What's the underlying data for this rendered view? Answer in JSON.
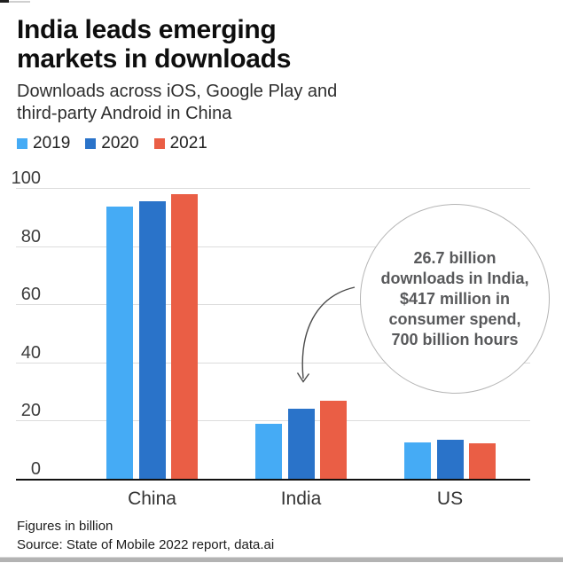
{
  "page": {
    "title": "India leads emerging\nmarkets in downloads",
    "subtitle": "Downloads across iOS, Google Play and\nthird-party Android in China"
  },
  "footer": {
    "note": "Figures in billion",
    "source": "Source: State of Mobile 2022 report, data.ai"
  },
  "chart_data": {
    "type": "bar",
    "title": "India leads emerging markets in downloads",
    "subtitle": "Downloads across iOS, Google Play and third-party Android in China",
    "categories": [
      "China",
      "India",
      "US"
    ],
    "series": [
      {
        "name": "2019",
        "color": "#45ABF5",
        "values": [
          93.5,
          19,
          12.5
        ]
      },
      {
        "name": "2020",
        "color": "#2A73C9",
        "values": [
          95.5,
          24,
          13.5
        ]
      },
      {
        "name": "2021",
        "color": "#EA5E45",
        "values": [
          98,
          26.7,
          12.2
        ]
      }
    ],
    "ylim": [
      0,
      100
    ],
    "yticks": [
      0,
      20,
      40,
      60,
      80,
      100
    ],
    "grid": true,
    "legend_position": "top-left",
    "annotation": {
      "text": "26.7 billion\ndownloads in India,\n$417 million in\nconsumer spend,\n700 billion hours",
      "target": "India 2021 bar"
    },
    "footnote": "Figures in billion",
    "source": "Source: State of Mobile 2022 report, data.ai"
  }
}
